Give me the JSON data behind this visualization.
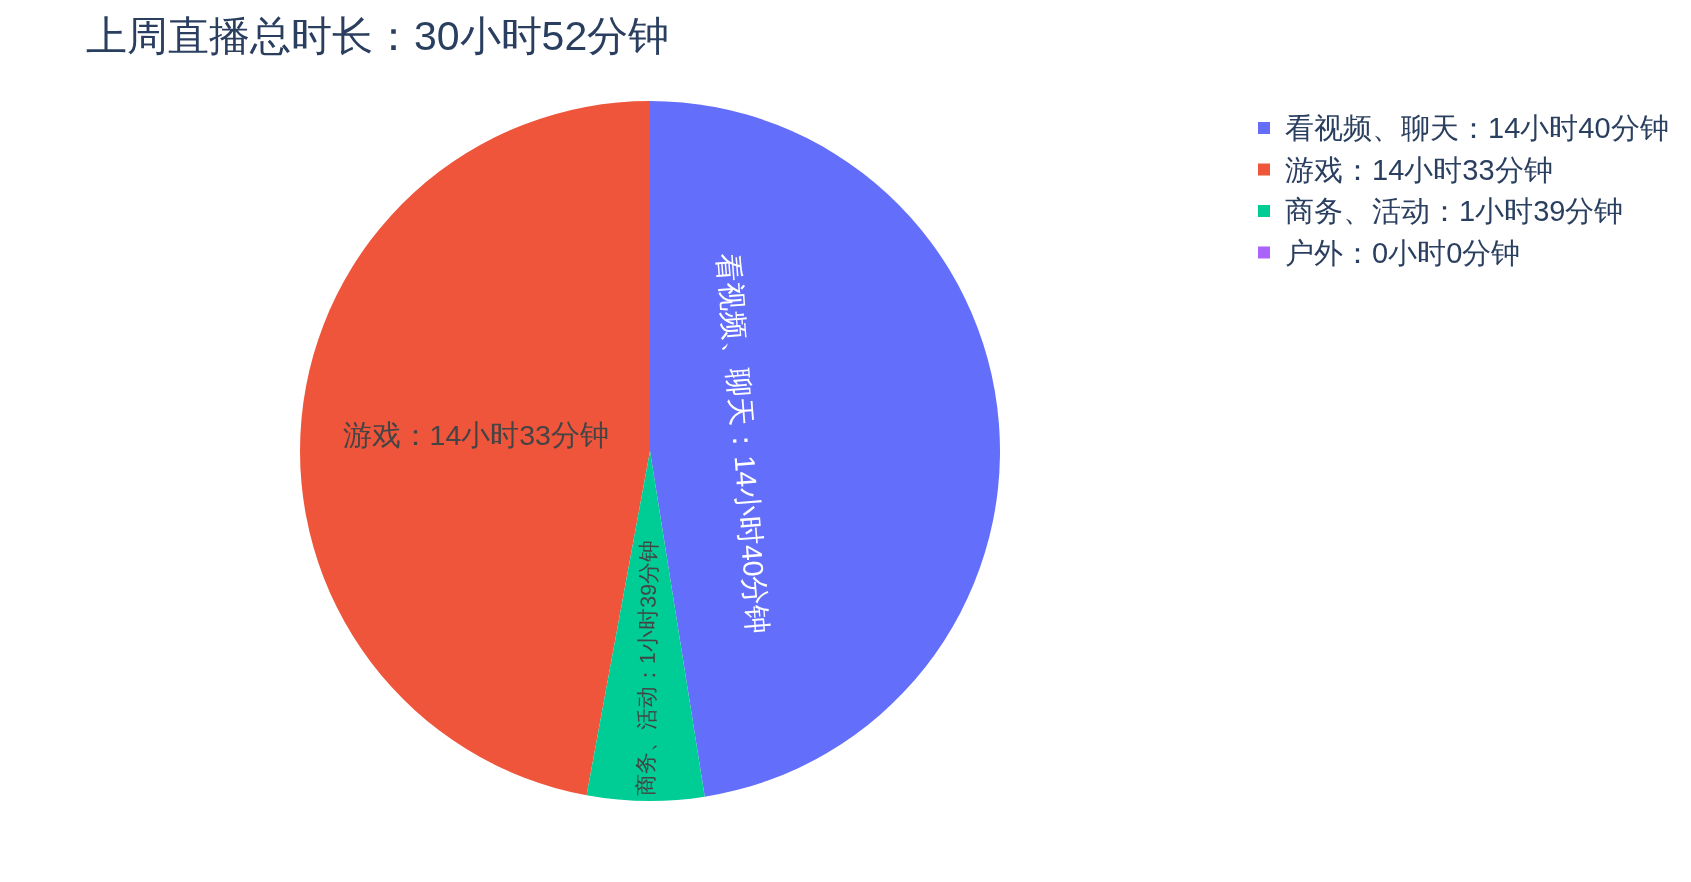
{
  "chart_data": {
    "type": "pie",
    "title": "上周直播总时长：30小时52分钟",
    "categories": [
      "看视频、聊天：14小时40分钟",
      "游戏：14小时33分钟",
      "商务、活动：1小时39分钟",
      "户外：0小时0分钟"
    ],
    "values": [
      47.5,
      47.1,
      5.4,
      0
    ],
    "colors": [
      "#636efa",
      "#ef553b",
      "#00cc96",
      "#ab63fa"
    ],
    "legend": "top right"
  }
}
